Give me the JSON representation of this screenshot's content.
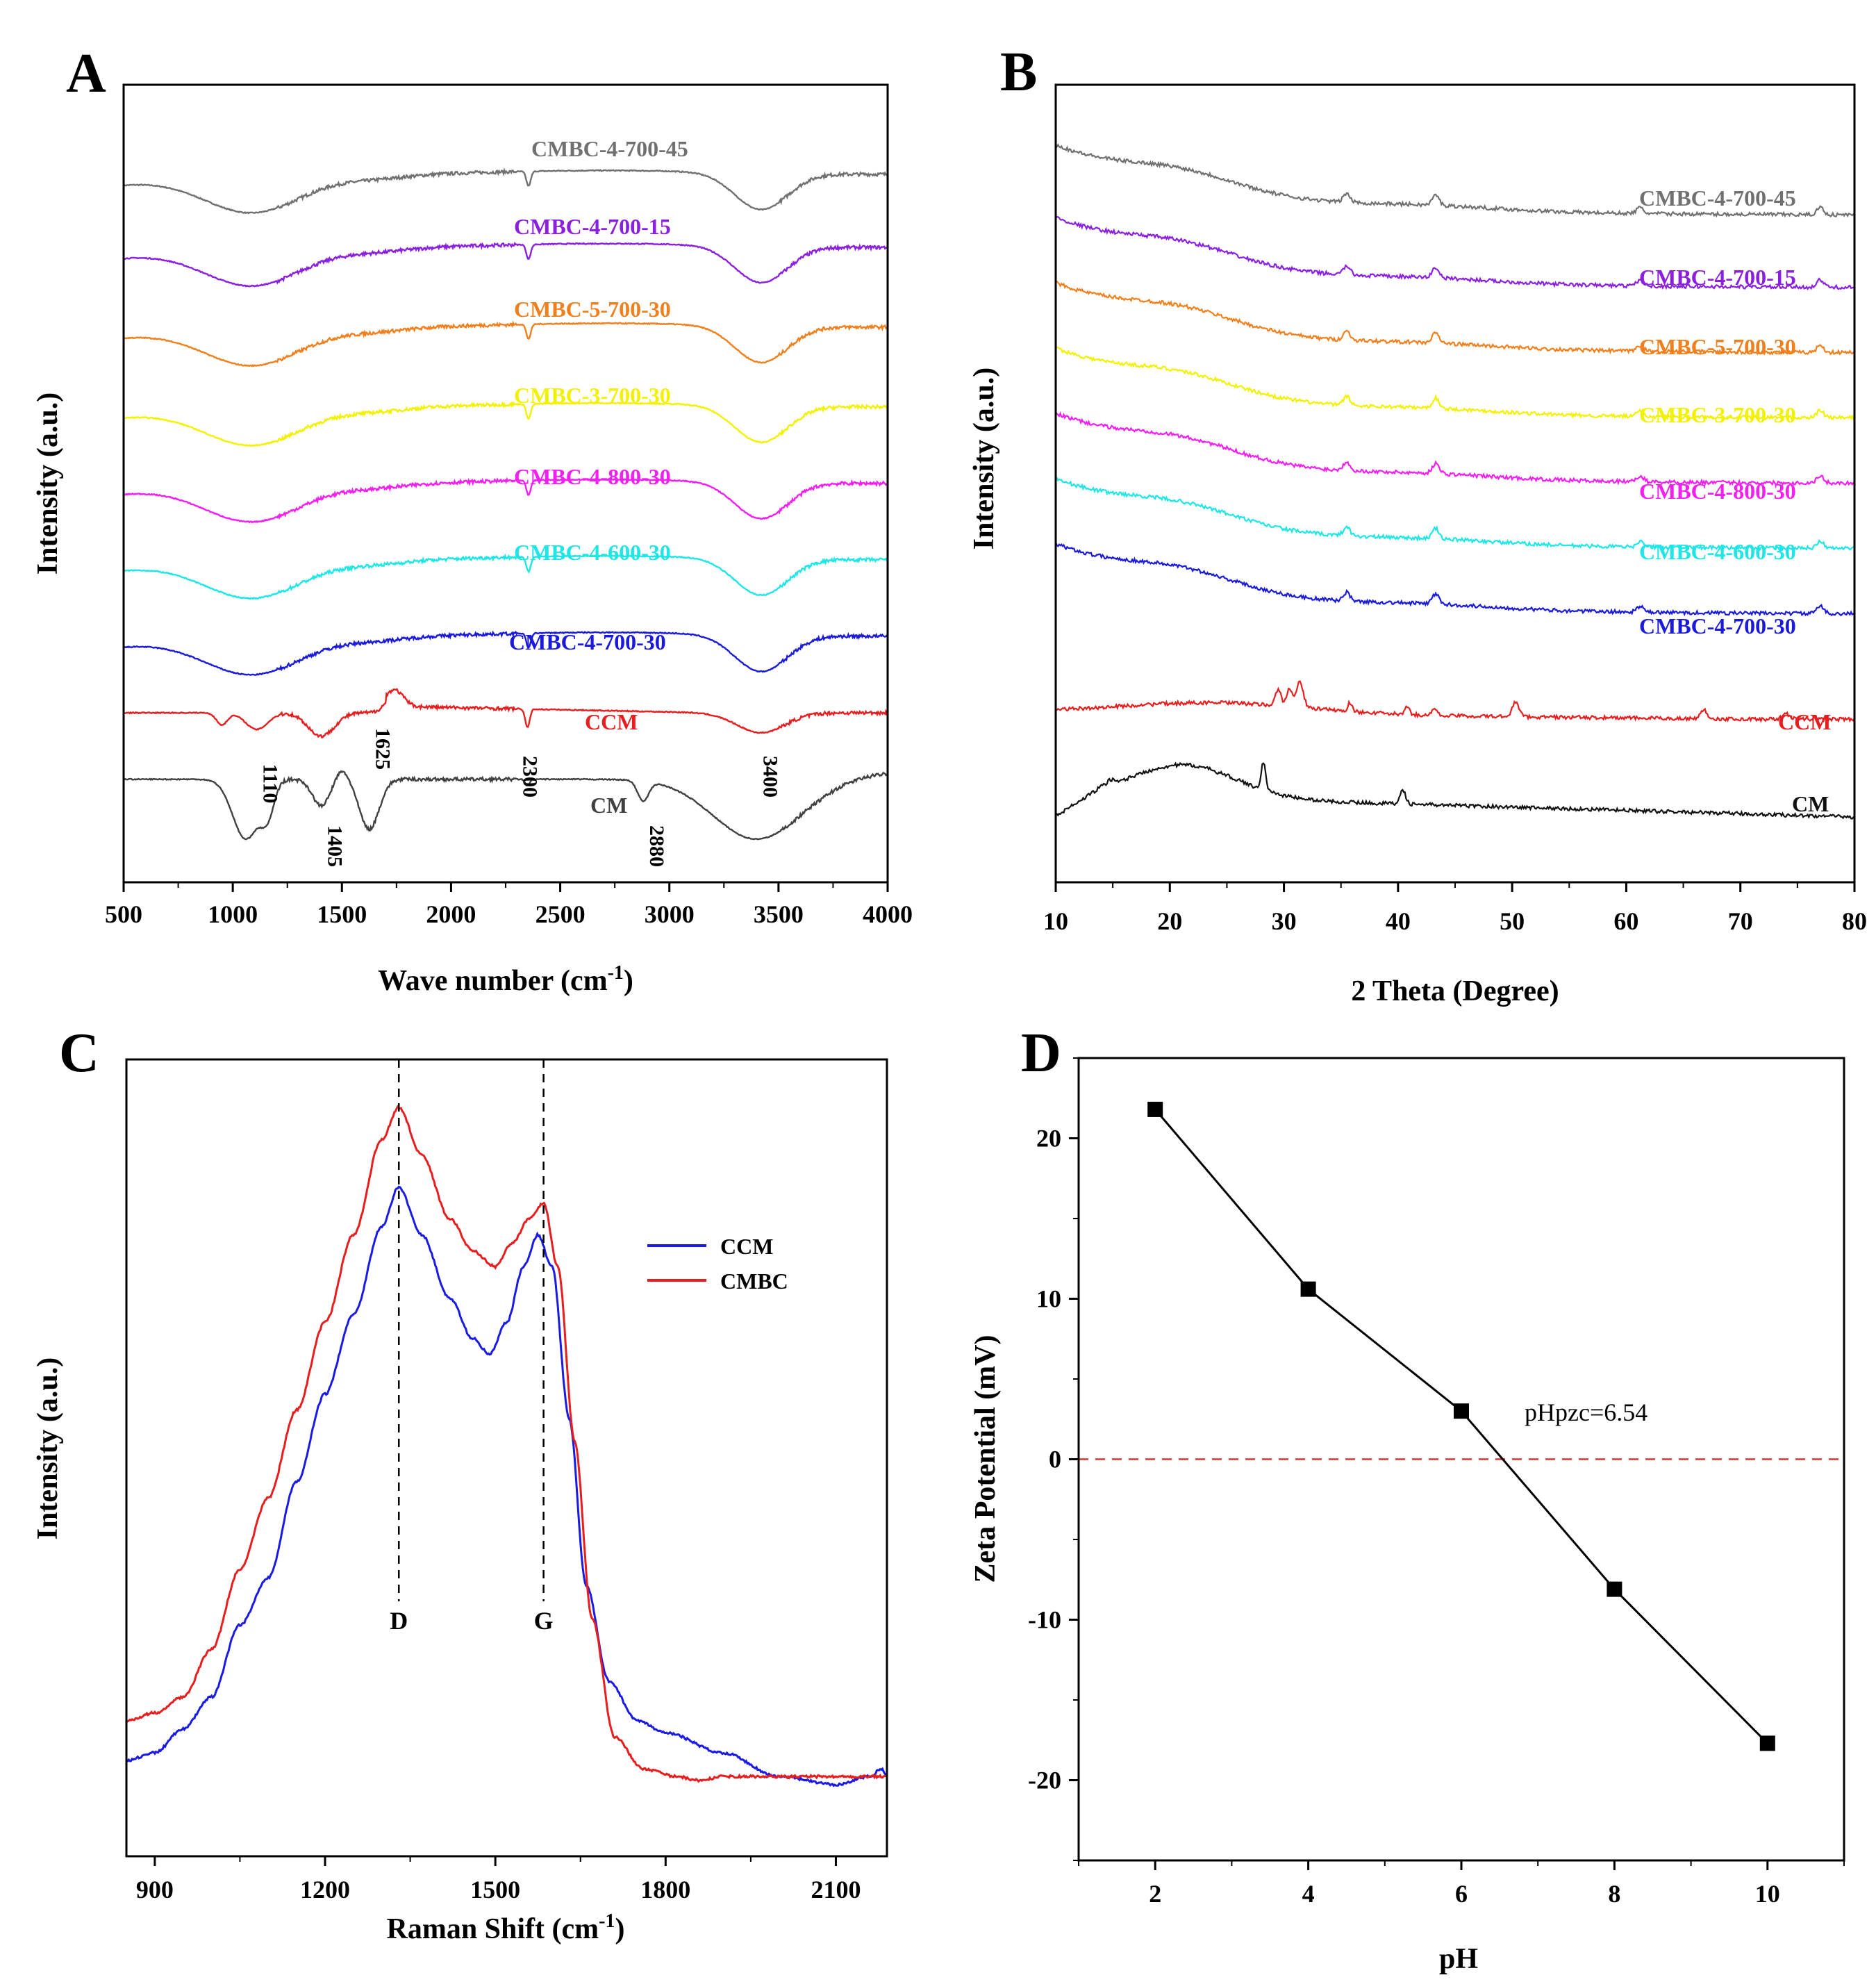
{
  "chart_data": [
    {
      "panel": "A",
      "type": "line",
      "xlabel": "Wave number (cm",
      "xlabel_sup": "-1",
      "xlabel_suffix": ")",
      "ylabel": "Intensity (a.u.)",
      "xlim": [
        500,
        4000
      ],
      "xticks": [
        500,
        1000,
        1500,
        2000,
        2500,
        3000,
        3500,
        4000
      ],
      "peak_labels": [
        "1110",
        "1405",
        "1625",
        "2300",
        "2880",
        "3400"
      ],
      "peak_positions": [
        1110,
        1405,
        1625,
        2300,
        2880,
        3400
      ],
      "series": [
        {
          "name": "CMBC-4-700-45",
          "color": "#707070",
          "offset": 10.4,
          "kind": "biochar"
        },
        {
          "name": "CMBC-4-700-15",
          "color": "#8B1FE0",
          "offset": 9.3,
          "kind": "biochar"
        },
        {
          "name": "CMBC-5-700-30",
          "color": "#F07F1C",
          "offset": 8.1,
          "kind": "biochar"
        },
        {
          "name": "CMBC-3-700-30",
          "color": "#F2F200",
          "offset": 6.9,
          "kind": "biochar"
        },
        {
          "name": "CMBC-4-800-30",
          "color": "#F21EF2",
          "offset": 5.75,
          "kind": "biochar"
        },
        {
          "name": "CMBC-4-600-30",
          "color": "#1EE6E6",
          "offset": 4.6,
          "kind": "biochar"
        },
        {
          "name": "CMBC-4-700-30",
          "color": "#1A1ADC",
          "offset": 3.45,
          "kind": "biochar"
        },
        {
          "name": "CCM",
          "color": "#E81E1E",
          "offset": 2.55,
          "kind": "ccm"
        },
        {
          "name": "CM",
          "color": "#404040",
          "offset": 1.55,
          "kind": "cm"
        }
      ]
    },
    {
      "panel": "B",
      "type": "line",
      "xlabel": "2 Theta (Degree)",
      "ylabel": "Intensity (a.u.)",
      "xlim": [
        10,
        80
      ],
      "xticks": [
        10,
        20,
        30,
        40,
        50,
        60,
        70,
        80
      ],
      "series": [
        {
          "name": "CMBC-4-700-45",
          "color": "#707070",
          "offset": 9.2,
          "kind": "biochar"
        },
        {
          "name": "CMBC-4-700-15",
          "color": "#8B1FE0",
          "offset": 8.2,
          "kind": "biochar"
        },
        {
          "name": "CMBC-5-700-30",
          "color": "#F07F1C",
          "offset": 7.3,
          "kind": "biochar"
        },
        {
          "name": "CMBC-3-700-30",
          "color": "#F2F200",
          "offset": 6.4,
          "kind": "biochar"
        },
        {
          "name": "CMBC-4-800-30",
          "color": "#F21EF2",
          "offset": 5.5,
          "kind": "biochar"
        },
        {
          "name": "CMBC-4-600-30",
          "color": "#1EE6E6",
          "offset": 4.6,
          "kind": "biochar"
        },
        {
          "name": "CMBC-4-700-30",
          "color": "#1A1ADC",
          "offset": 3.7,
          "kind": "biochar"
        },
        {
          "name": "CCM",
          "color": "#E81E1E",
          "offset": 2.25,
          "kind": "ccm"
        },
        {
          "name": "CM",
          "color": "#111111",
          "offset": 0.9,
          "kind": "cm"
        }
      ]
    },
    {
      "panel": "C",
      "type": "line",
      "xlabel": "Raman Shift (cm",
      "xlabel_sup": "-1",
      "xlabel_suffix": ")",
      "ylabel": "Intensity (a.u.)",
      "xlim": [
        850,
        2190
      ],
      "xticks": [
        900,
        1200,
        1500,
        1800,
        2100
      ],
      "band_labels": [
        "D",
        "G"
      ],
      "band_positions": [
        1330,
        1585
      ],
      "series": [
        {
          "name": "CCM",
          "color": "#1A1AE6",
          "points": [
            [
              850,
              0.12
            ],
            [
              900,
              0.13
            ],
            [
              950,
              0.16
            ],
            [
              1000,
              0.2
            ],
            [
              1050,
              0.29
            ],
            [
              1100,
              0.35
            ],
            [
              1150,
              0.47
            ],
            [
              1200,
              0.58
            ],
            [
              1250,
              0.68
            ],
            [
              1300,
              0.79
            ],
            [
              1330,
              0.84
            ],
            [
              1370,
              0.78
            ],
            [
              1420,
              0.7
            ],
            [
              1460,
              0.65
            ],
            [
              1490,
              0.63
            ],
            [
              1520,
              0.67
            ],
            [
              1550,
              0.74
            ],
            [
              1575,
              0.78
            ],
            [
              1600,
              0.74
            ],
            [
              1630,
              0.55
            ],
            [
              1660,
              0.34
            ],
            [
              1700,
              0.22
            ],
            [
              1750,
              0.17
            ],
            [
              1800,
              0.155
            ],
            [
              1900,
              0.13
            ],
            [
              2000,
              0.1
            ],
            [
              2100,
              0.09
            ],
            [
              2160,
              0.1
            ],
            [
              2180,
              0.11
            ],
            [
              2190,
              0.1
            ]
          ]
        },
        {
          "name": "CMBC",
          "color": "#E81E1E",
          "points": [
            [
              850,
              0.17
            ],
            [
              900,
              0.18
            ],
            [
              950,
              0.2
            ],
            [
              1000,
              0.26
            ],
            [
              1050,
              0.36
            ],
            [
              1100,
              0.45
            ],
            [
              1150,
              0.56
            ],
            [
              1200,
              0.67
            ],
            [
              1250,
              0.78
            ],
            [
              1300,
              0.9
            ],
            [
              1330,
              0.94
            ],
            [
              1370,
              0.88
            ],
            [
              1420,
              0.8
            ],
            [
              1460,
              0.76
            ],
            [
              1500,
              0.74
            ],
            [
              1530,
              0.77
            ],
            [
              1560,
              0.8
            ],
            [
              1585,
              0.82
            ],
            [
              1610,
              0.74
            ],
            [
              1640,
              0.52
            ],
            [
              1670,
              0.3
            ],
            [
              1710,
              0.15
            ],
            [
              1760,
              0.11
            ],
            [
              1820,
              0.1
            ],
            [
              1860,
              0.095
            ],
            [
              1900,
              0.1
            ],
            [
              2000,
              0.1
            ],
            [
              2100,
              0.1
            ],
            [
              2190,
              0.1
            ]
          ]
        }
      ]
    },
    {
      "panel": "D",
      "type": "line",
      "xlabel": "pH",
      "ylabel": "Zeta Potential (mV)",
      "xlim": [
        1,
        11
      ],
      "ylim": [
        -25,
        25
      ],
      "xticks": [
        2,
        4,
        6,
        8,
        10
      ],
      "yticks": [
        -20,
        -10,
        0,
        10,
        20
      ],
      "annotation": "pHpzc=6.54",
      "reference_y": 0,
      "series": [
        {
          "name": "Zeta Potential",
          "color": "#000000",
          "x": [
            2,
            4,
            6,
            8,
            10
          ],
          "y": [
            21.8,
            10.6,
            3.0,
            -8.1,
            -17.7
          ]
        }
      ]
    }
  ],
  "panels": {
    "A": {
      "letter": "A"
    },
    "B": {
      "letter": "B"
    },
    "C": {
      "letter": "C"
    },
    "D": {
      "letter": "D"
    }
  }
}
